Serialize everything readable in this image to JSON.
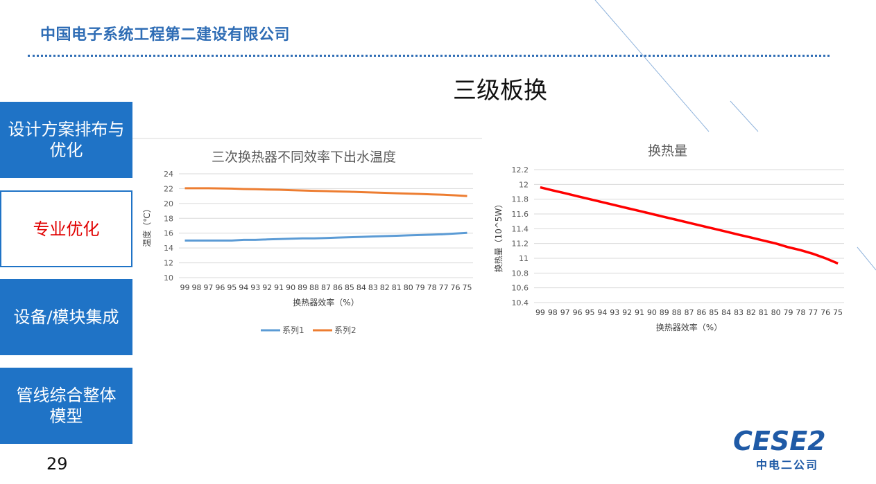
{
  "header": {
    "company": "中国电子系统工程第二建设有限公司"
  },
  "slide_title": "三级板换",
  "nav": [
    {
      "label_line1": "设计方案排布与",
      "label_line2": "优化"
    },
    {
      "label_line1": "专业优化",
      "label_line2": ""
    },
    {
      "label_line1": "设备/模块集成",
      "label_line2": ""
    },
    {
      "label_line1": "管线综合整体",
      "label_line2": "模型"
    }
  ],
  "page_number": "29",
  "logo": {
    "mark": "CESE2",
    "name": "中电二公司"
  },
  "colors": {
    "brand_blue": "#1F73C6",
    "active_red": "#E00000",
    "series1": "#5B9BD5",
    "series2": "#ED7D31",
    "line_red": "#FF0000"
  },
  "chart_data": [
    {
      "type": "line",
      "title": "三次换热器不同效率下出水温度",
      "xlabel": "换热器效率（%）",
      "ylabel": "温度（℃）",
      "ylim": [
        10,
        24
      ],
      "yticks": [
        10,
        12,
        14,
        16,
        18,
        20,
        22,
        24
      ],
      "categories": [
        "99",
        "98",
        "97",
        "96",
        "95",
        "94",
        "93",
        "92",
        "91",
        "90",
        "89",
        "88",
        "87",
        "86",
        "85",
        "84",
        "83",
        "82",
        "81",
        "80",
        "79",
        "78",
        "77",
        "76",
        "75"
      ],
      "series": [
        {
          "name": "系列1",
          "color": "#5B9BD5",
          "values": [
            15.0,
            15.0,
            15.0,
            15.0,
            15.0,
            15.1,
            15.1,
            15.15,
            15.2,
            15.25,
            15.3,
            15.3,
            15.35,
            15.4,
            15.45,
            15.5,
            15.55,
            15.6,
            15.65,
            15.7,
            15.75,
            15.8,
            15.85,
            15.95,
            16.05
          ]
        },
        {
          "name": "系列2",
          "color": "#ED7D31",
          "values": [
            22.05,
            22.05,
            22.05,
            22.03,
            22.0,
            21.95,
            21.92,
            21.88,
            21.85,
            21.8,
            21.75,
            21.7,
            21.67,
            21.62,
            21.58,
            21.53,
            21.48,
            21.43,
            21.38,
            21.33,
            21.28,
            21.23,
            21.18,
            21.1,
            21.0
          ]
        }
      ],
      "legend": "bottom",
      "grid": true
    },
    {
      "type": "line",
      "title": "换热量",
      "xlabel": "换热器效率（%）",
      "ylabel": "换热量（10^5W）",
      "ylim": [
        10.4,
        12.2
      ],
      "yticks": [
        10.4,
        10.6,
        10.8,
        11,
        11.2,
        11.4,
        11.6,
        11.8,
        12,
        12.2
      ],
      "categories": [
        "99",
        "98",
        "97",
        "96",
        "95",
        "94",
        "93",
        "92",
        "91",
        "90",
        "89",
        "88",
        "87",
        "86",
        "85",
        "84",
        "83",
        "82",
        "81",
        "80",
        "79",
        "78",
        "77",
        "76",
        "75"
      ],
      "series": [
        {
          "color": "#FF0000",
          "values": [
            11.96,
            11.92,
            11.88,
            11.84,
            11.8,
            11.76,
            11.72,
            11.68,
            11.64,
            11.6,
            11.56,
            11.52,
            11.48,
            11.44,
            11.4,
            11.36,
            11.32,
            11.28,
            11.24,
            11.2,
            11.15,
            11.11,
            11.06,
            11.0,
            10.93
          ]
        }
      ],
      "grid": true
    }
  ]
}
